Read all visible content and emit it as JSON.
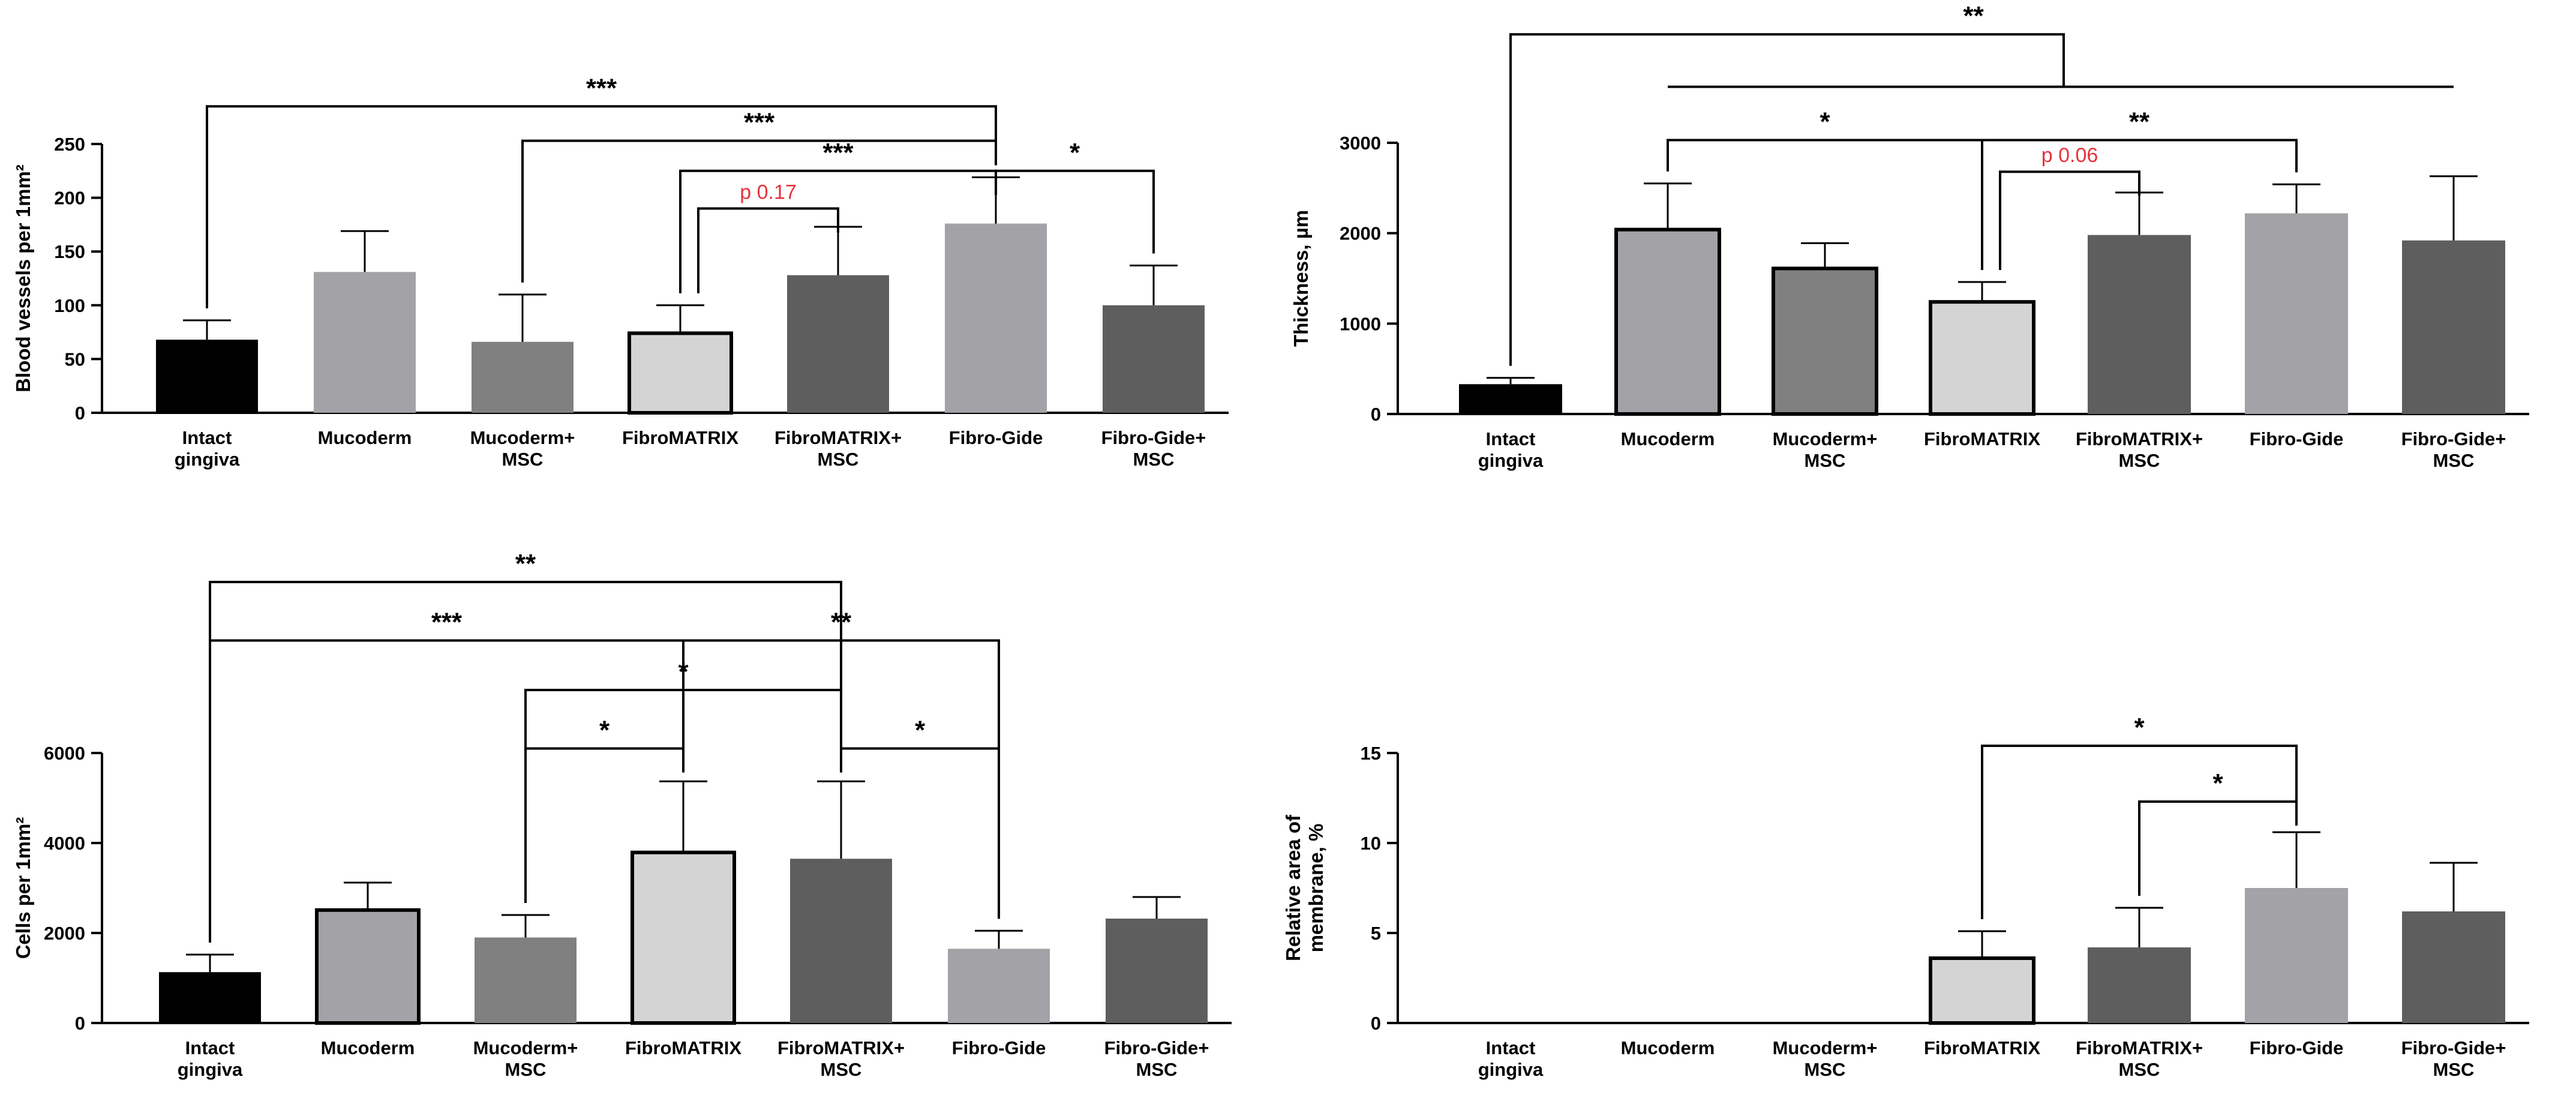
{
  "chart_data": [
    {
      "type": "bar",
      "panel": "top-left",
      "ylabel": "Blood vessels per 1mm²",
      "ylim": [
        0,
        250
      ],
      "yticks": [
        0,
        50,
        100,
        150,
        200,
        250
      ],
      "categories": [
        [
          "Intact",
          "gingiva"
        ],
        [
          "Mucoderm"
        ],
        [
          "Mucoderm+",
          "MSC"
        ],
        [
          "FibroMATRIX"
        ],
        [
          "FibroMATRIX+",
          "MSC"
        ],
        [
          "Fibro-Gide"
        ],
        [
          "Fibro-Gide+",
          "MSC"
        ]
      ],
      "values": [
        68,
        131,
        66,
        74,
        128,
        176,
        100
      ],
      "errors": [
        86,
        169,
        110,
        100,
        173,
        219,
        137
      ],
      "colors": [
        "#000000",
        "#a3a3a7",
        "#808080",
        "#d4d4d4",
        "#5e5e5e",
        "#a3a3a7",
        "#5e5e5e"
      ],
      "outlined": [
        false,
        false,
        false,
        true,
        false,
        false,
        false
      ],
      "annotations": [
        {
          "from": 0,
          "to": 5,
          "level": 285,
          "label": "***"
        },
        {
          "from": 2,
          "to": 5,
          "level": 253,
          "label": "***"
        },
        {
          "from": 3,
          "to": 5,
          "level": 225,
          "label": "***"
        },
        {
          "from": 5,
          "to": 6,
          "level": 225,
          "label": "*"
        },
        {
          "from": 3,
          "to": 4,
          "level": 190,
          "label": "p 0.17",
          "color": "#e8323a"
        }
      ]
    },
    {
      "type": "bar",
      "panel": "top-right",
      "ylabel": "Thickness, µm",
      "ylim": [
        0,
        3000
      ],
      "yticks": [
        0,
        1000,
        2000,
        3000
      ],
      "categories": [
        [
          "Intact",
          "gingiva"
        ],
        [
          "Mucoderm"
        ],
        [
          "Mucoderm+",
          "MSC"
        ],
        [
          "FibroMATRIX"
        ],
        [
          "FibroMATRIX+",
          "MSC"
        ],
        [
          "Fibro-Gide"
        ],
        [
          "Fibro-Gide+",
          "MSC"
        ]
      ],
      "values": [
        330,
        2040,
        1610,
        1240,
        1980,
        2220,
        1920
      ],
      "errors": [
        400,
        2550,
        1890,
        1460,
        2450,
        2540,
        2630
      ],
      "colors": [
        "#000000",
        "#a3a3a7",
        "#808080",
        "#d4d4d4",
        "#5e5e5e",
        "#a3a3a7",
        "#5e5e5e"
      ],
      "outlined": [
        false,
        true,
        true,
        true,
        false,
        false,
        false
      ],
      "annotations": [
        {
          "from": 0,
          "to": 3.6,
          "level": 4200,
          "label": "**",
          "label_at": 0
        },
        {
          "from": 1,
          "to": 3,
          "level": 3030,
          "label": "*"
        },
        {
          "from": 3,
          "to": 5,
          "level": 3030,
          "label": "**"
        },
        {
          "from": 3,
          "to": 4,
          "level": 2680,
          "label": "p 0.06",
          "color": "#e8323a"
        }
      ]
    },
    {
      "type": "bar",
      "panel": "bottom-left",
      "ylabel": "Cells per 1mm²",
      "ylim": [
        0,
        6000
      ],
      "yticks": [
        0,
        2000,
        4000,
        6000
      ],
      "categories": [
        [
          "Intact",
          "gingiva"
        ],
        [
          "Mucoderm"
        ],
        [
          "Mucoderm+",
          "MSC"
        ],
        [
          "FibroMATRIX"
        ],
        [
          "FibroMATRIX+",
          "MSC"
        ],
        [
          "Fibro-Gide"
        ],
        [
          "Fibro-Gide+",
          "MSC"
        ]
      ],
      "values": [
        1130,
        2510,
        1900,
        3790,
        3650,
        1650,
        2320
      ],
      "errors": [
        1520,
        3120,
        2400,
        5370,
        5370,
        2050,
        2800
      ],
      "colors": [
        "#000000",
        "#a3a3a7",
        "#808080",
        "#d4d4d4",
        "#5e5e5e",
        "#a3a3a7",
        "#5e5e5e"
      ],
      "outlined": [
        false,
        true,
        false,
        true,
        false,
        false,
        false
      ],
      "annotations": [
        {
          "from": 0,
          "to": 4,
          "level": 9800,
          "label": "**"
        },
        {
          "from": 0,
          "to": 3,
          "level": 8500,
          "label": "***"
        },
        {
          "from": 3,
          "to": 5,
          "level": 8500,
          "label": "**"
        },
        {
          "from": 2,
          "to": 4,
          "level": 7400,
          "label": "*"
        },
        {
          "from": 2,
          "to": 3,
          "level": 6100,
          "label": "*"
        },
        {
          "from": 4,
          "to": 5,
          "level": 6100,
          "label": "*"
        }
      ]
    },
    {
      "type": "bar",
      "panel": "bottom-right",
      "ylabel": "Relative area of membrane, %",
      "ylim": [
        0,
        15
      ],
      "yticks": [
        0,
        5,
        10,
        15
      ],
      "categories": [
        [
          "Intact",
          "gingiva"
        ],
        [
          "Mucoderm"
        ],
        [
          "Mucoderm+",
          "MSC"
        ],
        [
          "FibroMATRIX"
        ],
        [
          "FibroMATRIX+",
          "MSC"
        ],
        [
          "Fibro-Gide"
        ],
        [
          "Fibro-Gide+",
          "MSC"
        ]
      ],
      "values": [
        0,
        0,
        0,
        3.6,
        4.2,
        7.5,
        6.2
      ],
      "errors": [
        0,
        0,
        0,
        5.1,
        6.4,
        10.6,
        8.9
      ],
      "colors": [
        "#000000",
        "#a3a3a7",
        "#808080",
        "#d4d4d4",
        "#5e5e5e",
        "#a3a3a7",
        "#5e5e5e"
      ],
      "outlined": [
        false,
        false,
        false,
        true,
        false,
        false,
        false
      ],
      "annotations": [
        {
          "from": 3,
          "to": 5,
          "level": 15.4,
          "label": "*"
        },
        {
          "from": 4,
          "to": 5,
          "level": 12.3,
          "label": "*"
        }
      ]
    }
  ]
}
